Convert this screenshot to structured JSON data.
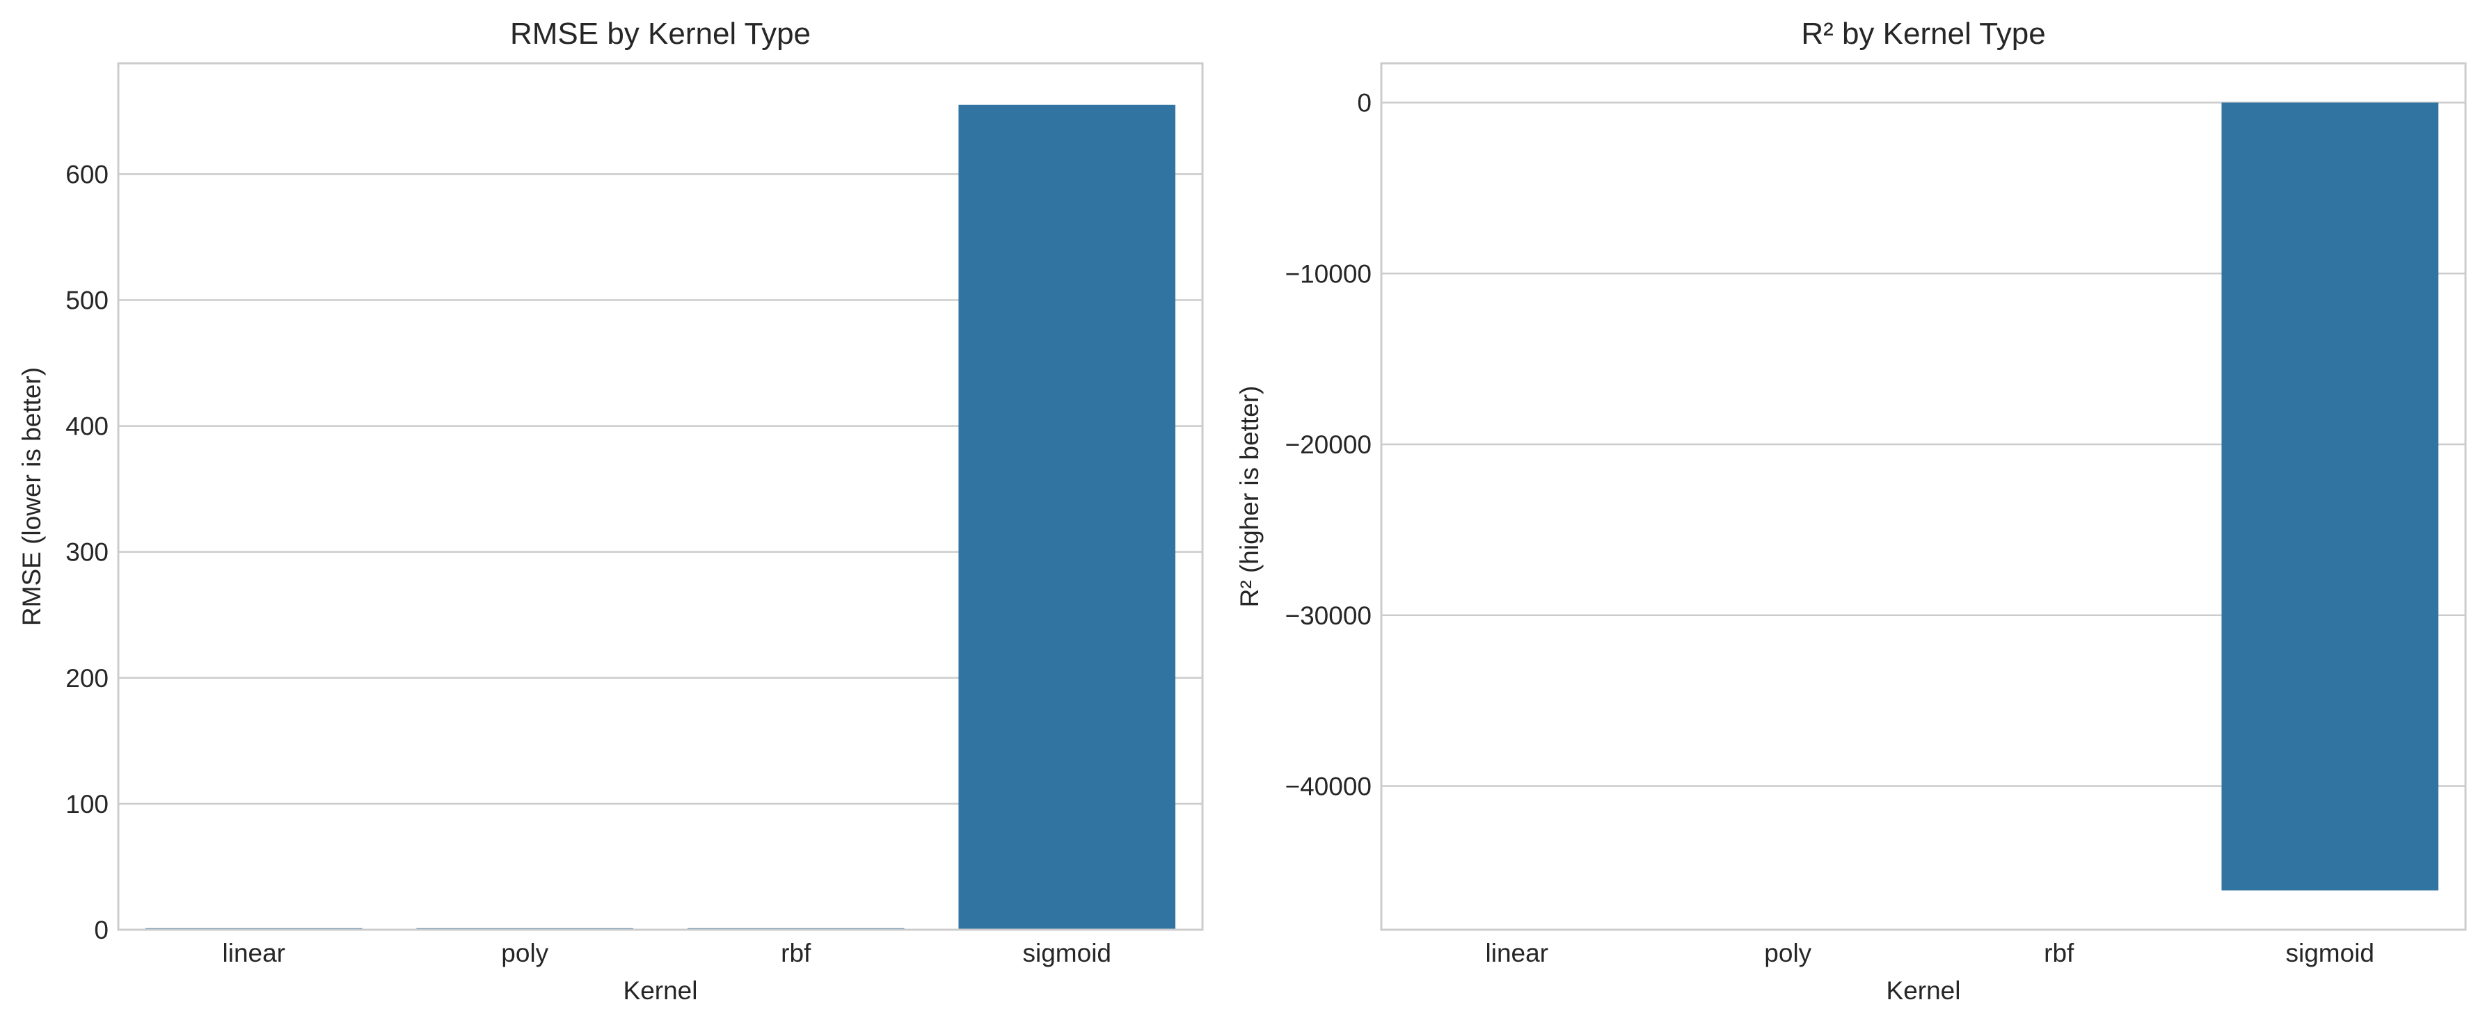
{
  "colors": {
    "bar": "#3274a1",
    "grid": "#cccccc",
    "text": "#262626"
  },
  "chart_data": [
    {
      "type": "bar",
      "title": "RMSE by Kernel Type",
      "xlabel": "Kernel",
      "ylabel": "RMSE (lower is better)",
      "categories": [
        "linear",
        "poly",
        "rbf",
        "sigmoid"
      ],
      "values": [
        1.2,
        1.2,
        1.2,
        655
      ],
      "ylim": [
        0,
        688
      ],
      "yticks": [
        0,
        100,
        200,
        300,
        400,
        500,
        600
      ],
      "ytick_labels": [
        "0",
        "100",
        "200",
        "300",
        "400",
        "500",
        "600"
      ],
      "grid": "horizontal",
      "legend": "none"
    },
    {
      "type": "bar",
      "title": "R² by Kernel Type",
      "xlabel": "Kernel",
      "ylabel": "R² (higher is better)",
      "categories": [
        "linear",
        "poly",
        "rbf",
        "sigmoid"
      ],
      "values": [
        0,
        0,
        0,
        -46100
      ],
      "ylim": [
        -48400,
        2300
      ],
      "yticks": [
        0,
        -10000,
        -20000,
        -30000,
        -40000
      ],
      "ytick_labels": [
        "0",
        "−10000",
        "−20000",
        "−30000",
        "−40000"
      ],
      "grid": "horizontal",
      "legend": "none"
    }
  ]
}
